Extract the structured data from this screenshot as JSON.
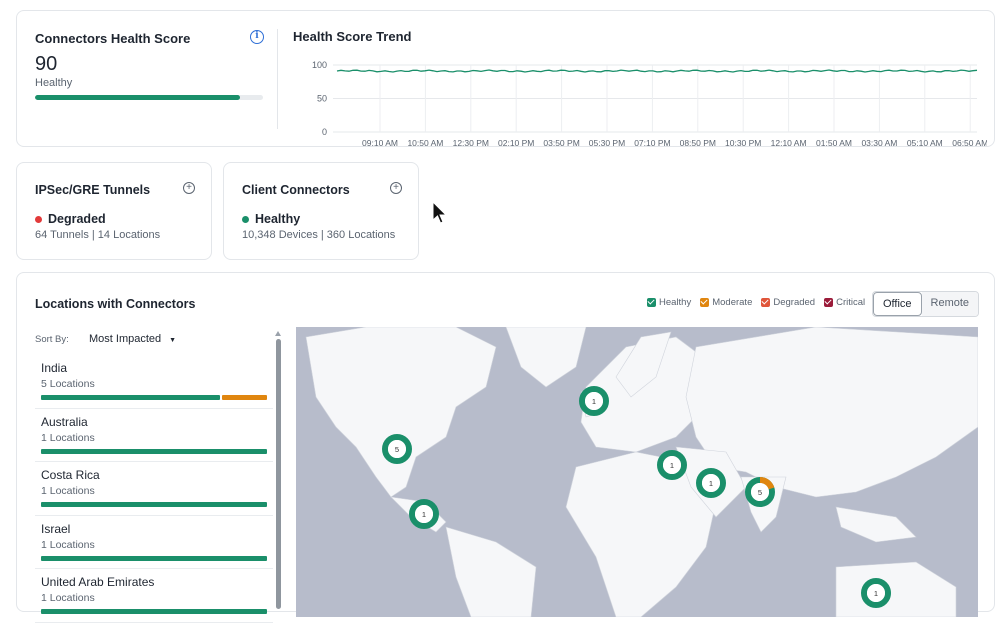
{
  "health": {
    "title": "Connectors Health Score",
    "score": "90",
    "status": "Healthy",
    "bar_percent": 90
  },
  "trend": {
    "title": "Health Score Trend",
    "y_ticks": [
      "100",
      "50",
      "0"
    ],
    "x_ticks": [
      "09:10 AM",
      "10:50 AM",
      "12:30 PM",
      "02:10 PM",
      "03:50 PM",
      "05:30 PM",
      "07:10 PM",
      "08:50 PM",
      "10:30 PM",
      "12:10 AM",
      "01:50 AM",
      "03:30 AM",
      "05:10 AM",
      "06:50 AM"
    ]
  },
  "ipsec": {
    "title": "IPSec/GRE Tunnels",
    "status": "Degraded",
    "status_color": "#e23a3a",
    "sub": "64 Tunnels | 14 Locations"
  },
  "client": {
    "title": "Client Connectors",
    "status": "Healthy",
    "status_color": "#1a8f6a",
    "sub": "10,348 Devices | 360 Locations"
  },
  "locations": {
    "title": "Locations with Connectors",
    "legend": [
      {
        "label": "Healthy",
        "color": "#1a8f6a"
      },
      {
        "label": "Moderate",
        "color": "#e0860f"
      },
      {
        "label": "Degraded",
        "color": "#e0553a"
      },
      {
        "label": "Critical",
        "color": "#9b1c3a"
      }
    ],
    "toggle": {
      "office": "Office",
      "remote": "Remote",
      "selected": "Office"
    },
    "sort_label": "Sort By:",
    "sort_value": "Most Impacted",
    "items": [
      {
        "name": "India",
        "count": "5 Locations",
        "healthy_fraction": 0.8,
        "moderate_fraction": 0.2
      },
      {
        "name": "Australia",
        "count": "1 Locations",
        "healthy_fraction": 1,
        "moderate_fraction": 0
      },
      {
        "name": "Costa Rica",
        "count": "1 Locations",
        "healthy_fraction": 1,
        "moderate_fraction": 0
      },
      {
        "name": "Israel",
        "count": "1 Locations",
        "healthy_fraction": 1,
        "moderate_fraction": 0
      },
      {
        "name": "United Arab Emirates",
        "count": "1 Locations",
        "healthy_fraction": 1,
        "moderate_fraction": 0
      }
    ],
    "markers": [
      {
        "label": "5",
        "region": "North America"
      },
      {
        "label": "1",
        "region": "Costa Rica"
      },
      {
        "label": "1",
        "region": "Ireland"
      },
      {
        "label": "1",
        "region": "Israel"
      },
      {
        "label": "1",
        "region": "United Arab Emirates"
      },
      {
        "label": "5",
        "region": "India"
      },
      {
        "label": "1",
        "region": "Australia"
      }
    ]
  }
}
